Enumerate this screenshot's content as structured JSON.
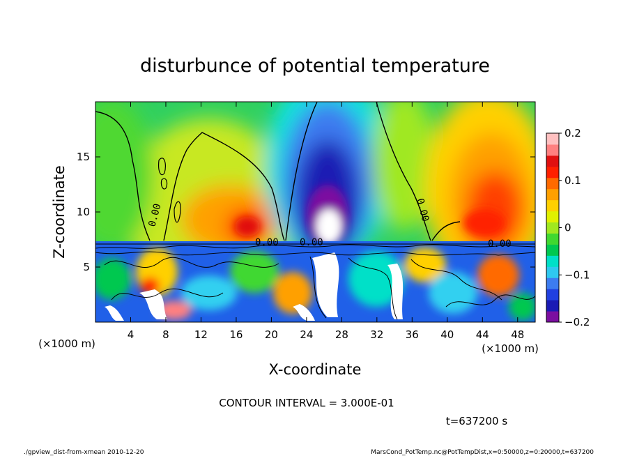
{
  "chart_data": {
    "type": "heatmap",
    "title": "disturbunce of potential temperature",
    "xlabel": "X-coordinate",
    "ylabel": "Z-coordinate",
    "x_units": "(×1000 m)",
    "y_units": "(×1000 m)",
    "xlim": [
      0,
      50
    ],
    "ylim": [
      0,
      20
    ],
    "x_ticks": [
      4,
      8,
      12,
      16,
      20,
      24,
      28,
      32,
      36,
      40,
      44,
      48
    ],
    "y_ticks": [
      5,
      10,
      15
    ],
    "colorbar": {
      "range": [
        -0.2,
        0.2
      ],
      "tick_values": [
        0.2,
        0.1,
        0,
        -0.1,
        -0.2
      ],
      "tick_labels": [
        "0.2",
        "0.1",
        "0",
        "−0.1",
        "−0.2"
      ],
      "levels": [
        "#7b0fa0",
        "#1a1ab4",
        "#2040e0",
        "#3c7cf0",
        "#2fc8f0",
        "#00e0c8",
        "#00c850",
        "#40d830",
        "#a0e820",
        "#e0f000",
        "#ffd000",
        "#ffa000",
        "#ff6a00",
        "#ff2000",
        "#e01010",
        "#ff8080",
        "#ffc0c0"
      ]
    },
    "contour_label": "0.00",
    "contour_interval_text": "CONTOUR INTERVAL = 3.000E-01",
    "time_text": "t=637200 s",
    "field_summary": [
      {
        "feature": "positive anomaly (upper left)",
        "x": [
          2,
          22
        ],
        "z": [
          8,
          18
        ],
        "value": 0.1
      },
      {
        "feature": "negative anomaly (center)",
        "x": [
          22,
          36
        ],
        "z": [
          8,
          20
        ],
        "value": -0.18
      },
      {
        "feature": "positive anomaly (right)",
        "x": [
          38,
          50
        ],
        "z": [
          8,
          18
        ],
        "value": 0.14
      },
      {
        "feature": "turbulent mixed layer",
        "x": [
          0,
          50
        ],
        "z": [
          0,
          7.5
        ],
        "value": 0
      }
    ]
  },
  "footer": {
    "left": "./gpview_dist-from-xmean  2010-12-20",
    "right": "MarsCond_PotTemp.nc@PotTempDist,x=0:50000,z=0:20000,t=637200"
  }
}
